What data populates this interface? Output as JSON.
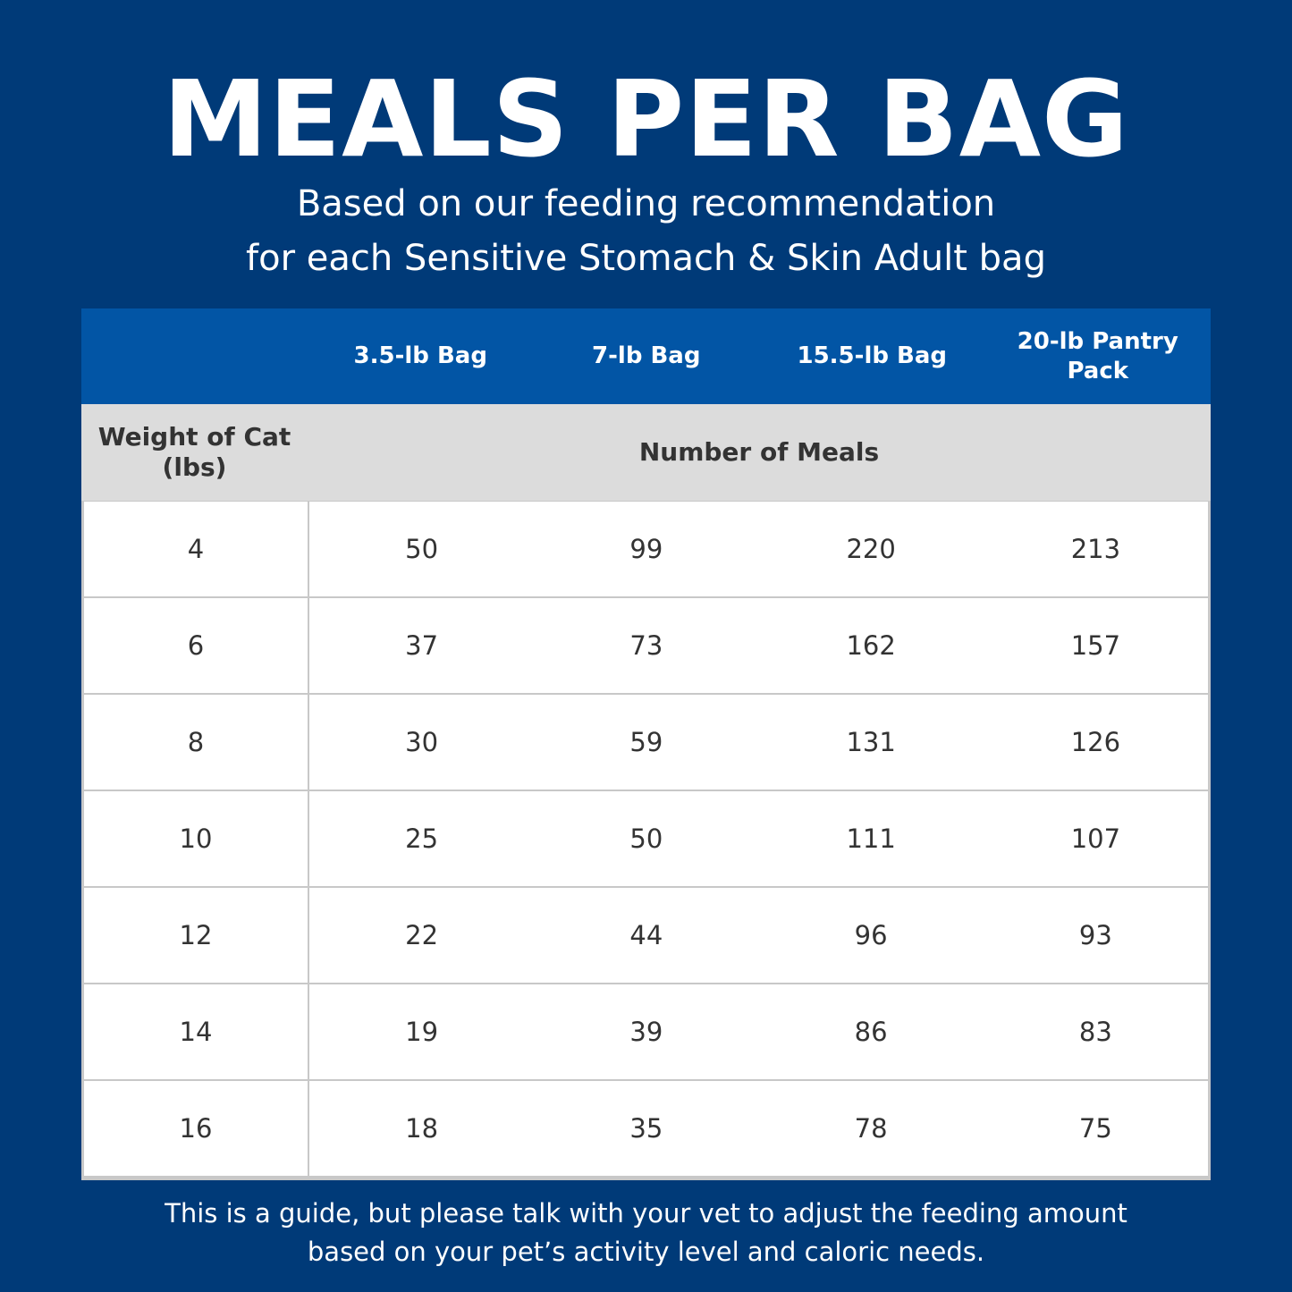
{
  "title": "MEALS PER BAG",
  "subtitle": [
    "Based on our feeding recommendation",
    "for each Sensitive Stomach & Skin Adult bag"
  ],
  "table": {
    "columns": [
      "3.5-lb Bag",
      "7-lb Bag",
      "15.5-lb Bag",
      "20-lb Pantry Pack"
    ],
    "row_header_label": [
      "Weight of Cat",
      "(lbs)"
    ],
    "values_label": "Number of Meals",
    "rows": [
      {
        "weight": "4",
        "values": [
          "50",
          "99",
          "220",
          "213"
        ]
      },
      {
        "weight": "6",
        "values": [
          "37",
          "73",
          "162",
          "157"
        ]
      },
      {
        "weight": "8",
        "values": [
          "30",
          "59",
          "131",
          "126"
        ]
      },
      {
        "weight": "10",
        "values": [
          "25",
          "50",
          "111",
          "107"
        ]
      },
      {
        "weight": "12",
        "values": [
          "22",
          "44",
          "96",
          "93"
        ]
      },
      {
        "weight": "14",
        "values": [
          "19",
          "39",
          "86",
          "83"
        ]
      },
      {
        "weight": "16",
        "values": [
          "18",
          "35",
          "78",
          "75"
        ]
      }
    ]
  },
  "footer": [
    "This is a guide, but please talk with your vet to adjust the feeding amount",
    "based on your pet’s activity level and caloric needs."
  ],
  "colors": {
    "background": "#003a78",
    "header": "#0255a5",
    "subheader": "#dcdcdc"
  }
}
